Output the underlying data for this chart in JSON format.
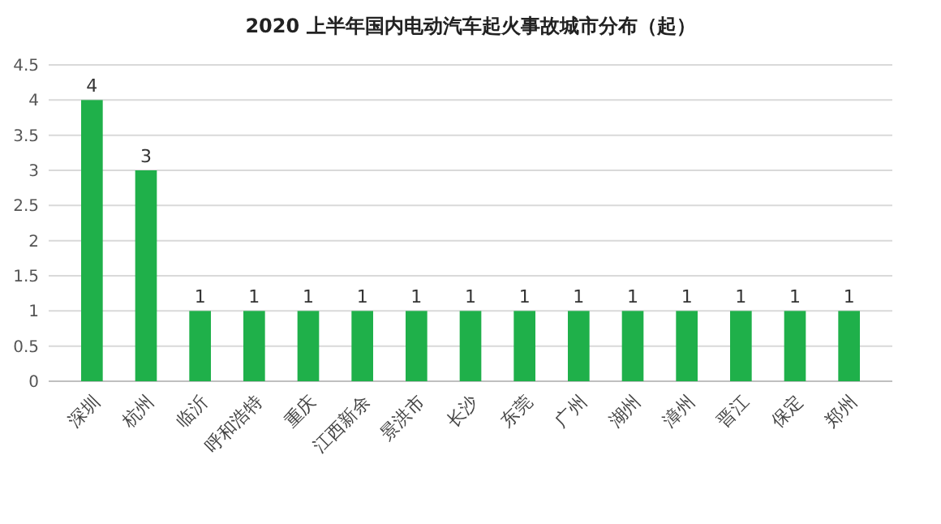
{
  "chart_data": {
    "type": "bar",
    "title": "2020 上半年国内电动汽车起火事故城市分布（起）",
    "categories": [
      "深圳",
      "杭州",
      "临沂",
      "呼和浩特",
      "重庆",
      "江西新余",
      "景洪市",
      "长沙",
      "东莞",
      "广州",
      "湖州",
      "漳州",
      "晋江",
      "保定",
      "郑州"
    ],
    "values": [
      4,
      3,
      1,
      1,
      1,
      1,
      1,
      1,
      1,
      1,
      1,
      1,
      1,
      1,
      1
    ],
    "color": "#1fb04a",
    "ylim": [
      0,
      4.5
    ],
    "yticks": [
      0,
      0.5,
      1,
      1.5,
      2,
      2.5,
      3,
      3.5,
      4,
      4.5
    ],
    "grid": "y",
    "data_labels": true
  }
}
